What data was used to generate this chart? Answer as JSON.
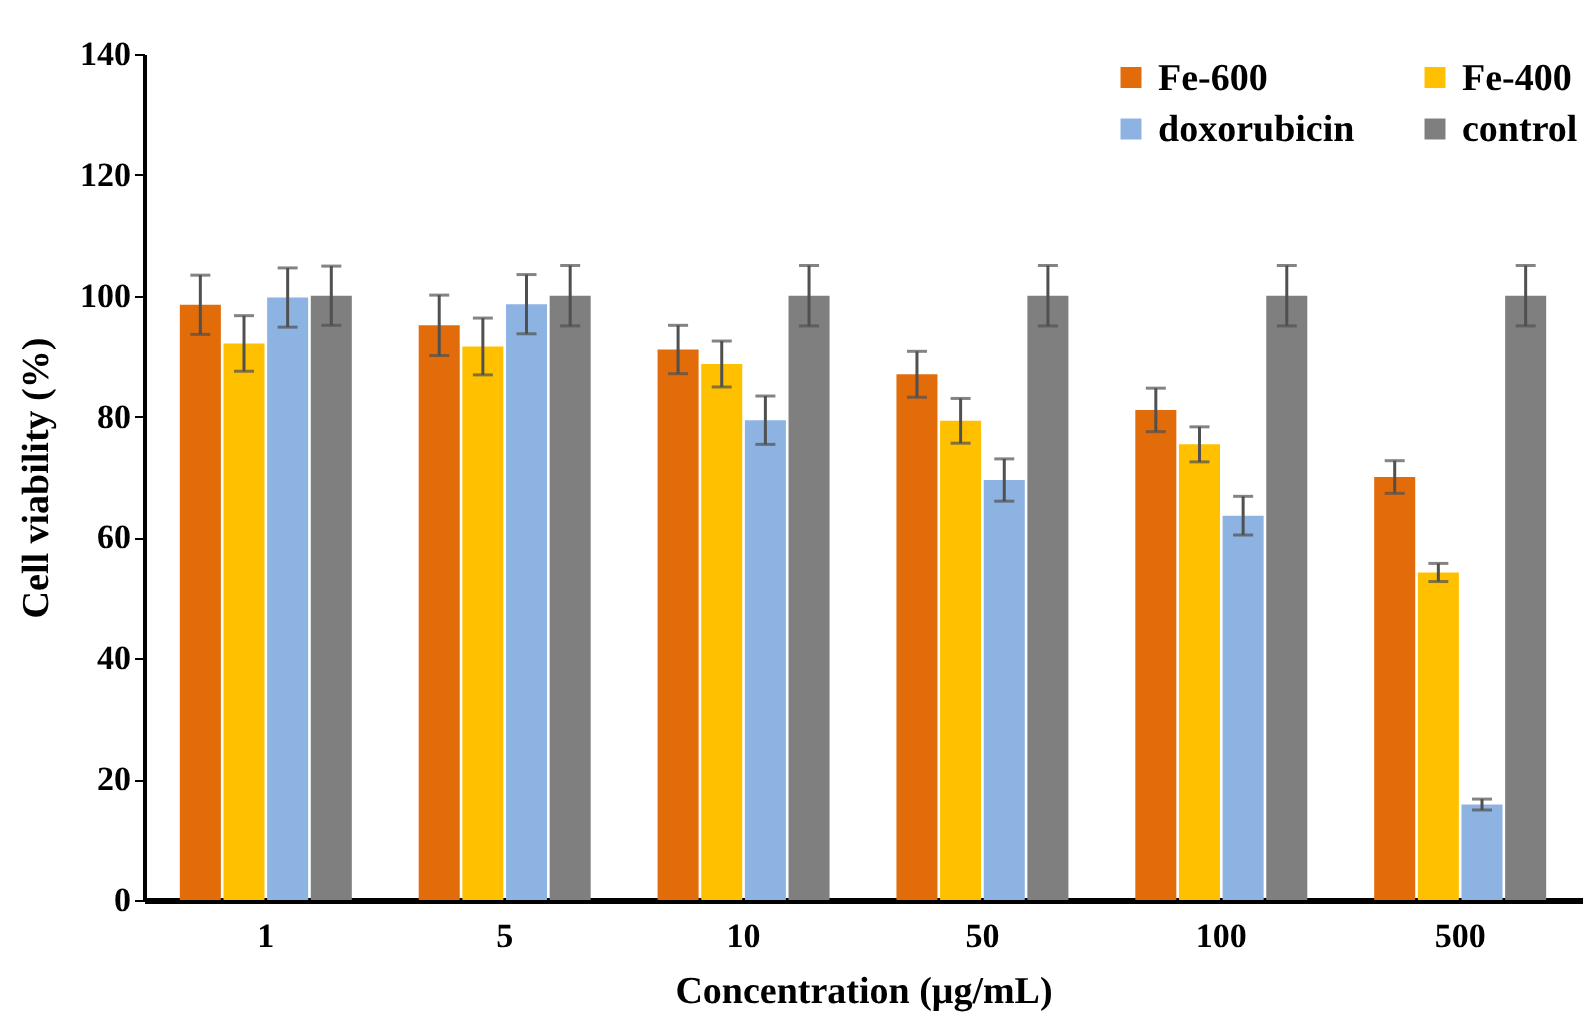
{
  "chart_data": {
    "type": "bar",
    "xlabel": "Concentration (μg/mL)",
    "ylabel": "Cell viability (%)",
    "categories": [
      "1",
      "5",
      "10",
      "50",
      "100",
      "500"
    ],
    "series": [
      {
        "name": "Fe-600",
        "color": "#e36c0a",
        "values": [
          98.5,
          95.1,
          91.1,
          87.0,
          81.1,
          70.0
        ],
        "errors": [
          4.9,
          5.0,
          4.0,
          3.8,
          3.6,
          2.7
        ]
      },
      {
        "name": "Fe-400",
        "color": "#ffc000",
        "values": [
          92.1,
          91.6,
          88.7,
          79.3,
          75.4,
          54.2
        ],
        "errors": [
          4.6,
          4.7,
          3.8,
          3.7,
          2.9,
          1.5
        ]
      },
      {
        "name": "doxorubicin",
        "color": "#8db3e2",
        "values": [
          99.7,
          98.6,
          79.4,
          69.5,
          63.6,
          15.8
        ],
        "errors": [
          4.9,
          4.9,
          4.0,
          3.5,
          3.2,
          0.9
        ]
      },
      {
        "name": "control",
        "color": "#7f7f7f",
        "values": [
          100,
          100,
          100,
          100,
          100,
          100
        ],
        "errors": [
          4.9,
          5.0,
          5.0,
          5.0,
          5.0,
          5.0
        ]
      }
    ],
    "ylim": [
      0,
      140
    ],
    "yticks": [
      0,
      20,
      40,
      60,
      80,
      100,
      120,
      140
    ],
    "grid": false,
    "legend": "top right"
  }
}
